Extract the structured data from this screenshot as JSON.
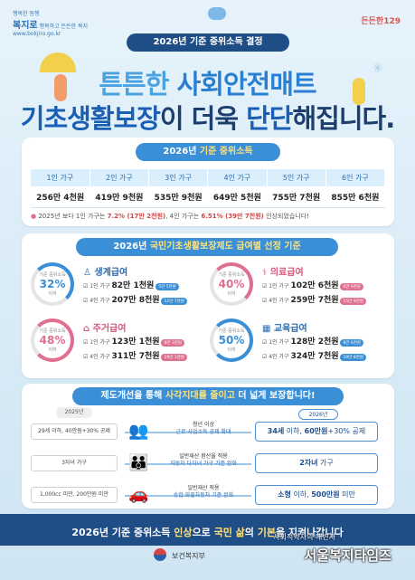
{
  "logos": {
    "left_small": "행복한 동행",
    "left_big": "복지로",
    "left_sub": "행복하고 든든한 복지",
    "left_url": "www.bokjiro.go.kr",
    "right": "든든한129"
  },
  "header": {
    "pill": "2026년 기준 중위소득 결정",
    "title1_a": "튼튼한 ",
    "title1_b": "사회안전매트",
    "title2_a": "기초생활보장",
    "title2_b": "이 더욱 ",
    "title2_c": "단단",
    "title2_d": "해집니다."
  },
  "income": {
    "pill_a": "2026년 ",
    "pill_b": "기준 중위소득",
    "headers": [
      "1인 가구",
      "2인 가구",
      "3인 가구",
      "4인 가구",
      "5인 가구",
      "6인 가구"
    ],
    "values": [
      "256만 4천원",
      "419만 9천원",
      "535만 9천원",
      "649만 5천원",
      "755만 7천원",
      "855만 6천원"
    ],
    "note_a": "2025년 보다 1인 가구는 ",
    "note_b": "7.2% (17만 2천원)",
    "note_c": ", 4인 가구는 ",
    "note_d": "6.51% (39만 7천원)",
    "note_e": " 인상되었습니다!"
  },
  "benefits": {
    "pill_a": "2026년 ",
    "pill_b": "국민기초생활보장제도 급여별 선정 기준",
    "items": [
      {
        "gauge_label": "기준 중위소득",
        "pct": "32%",
        "sub": "이하",
        "title": "생계급여",
        "row1_label": "1인 가구",
        "row1_amt": "82만 1천원",
        "row1_chip": "5만 5천원",
        "row2_label": "4인 가구",
        "row2_amt": "207만 8천원",
        "row2_chip": "12만 7천원",
        "color": "#3a8fd6"
      },
      {
        "gauge_label": "기준 중위소득",
        "pct": "40%",
        "sub": "이하",
        "title": "의료급여",
        "row1_label": "1인 가구",
        "row1_amt": "102만 6천원",
        "row1_chip": "6만 9천원",
        "row2_label": "4인 가구",
        "row2_amt": "259만 7천원",
        "row2_chip": "15만 9천원",
        "color": "#e0708f"
      },
      {
        "gauge_label": "기준 중위소득",
        "pct": "48%",
        "sub": "이하",
        "title": "주거급여",
        "row1_label": "1인 가구",
        "row1_amt": "123만 1천원",
        "row1_chip": "8만 3천원",
        "row2_label": "4인 가구",
        "row2_amt": "311만 7천원",
        "row2_chip": "19만 1천원",
        "color": "#e0708f"
      },
      {
        "gauge_label": "기준 중위소득",
        "pct": "50%",
        "sub": "이하",
        "title": "교육급여",
        "row1_label": "1인 가구",
        "row1_amt": "128만 2천원",
        "row1_chip": "8만 6천원",
        "row2_label": "4인 가구",
        "row2_amt": "324만 7천원",
        "row2_chip": "19만 8천원",
        "color": "#3a8fd6"
      }
    ]
  },
  "reform": {
    "pill_a": "제도개선을 통해 ",
    "pill_b": "사각지대를 줄이고",
    "pill_c": " 더 넓게 보장합니다!",
    "year_before": "2025년",
    "year_after": "2026년",
    "rows": [
      {
        "before": "29세 이하, 40만원+30% 공제",
        "mid1": "청년 이상",
        "mid2": "근로·사업소득 공제 확대",
        "after_a": "34세",
        "after_b": " 이하, ",
        "after_c": "60만원",
        "after_d": "+30% 공제"
      },
      {
        "before": "3자녀 가구",
        "mid1": "일반재산 환산율 적용",
        "mid2": "자동차 다자녀 가구 기준 완화",
        "after_a": "2자녀",
        "after_b": " 가구",
        "after_c": "",
        "after_d": ""
      },
      {
        "before": "1,000cc 미만, 200만원 미만",
        "mid1": "일반재산 적용",
        "mid2": "승합·화물자동차 기준 완화",
        "after_a": "소형",
        "after_b": " 이하, ",
        "after_c": "500만원",
        "after_d": " 미만"
      }
    ]
  },
  "footer": {
    "slogan_a": "2026년 기준 중위소득 ",
    "slogan_b": "인상",
    "slogan_c": "으로 ",
    "slogan_d": "국민 삶",
    "slogan_e": "의 ",
    "slogan_f": "기본",
    "slogan_g": "을 지켜나갑니다",
    "ministry": "보건복지부",
    "watermark_sub": "사회적약자의 대변자",
    "watermark": "서울복지타임즈"
  }
}
